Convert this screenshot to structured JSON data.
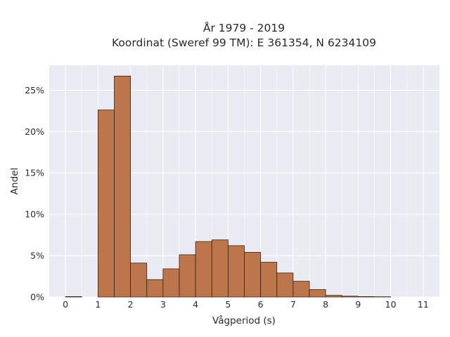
{
  "chart_data": {
    "type": "bar",
    "title": [
      "År 1979 - 2019",
      "Koordinat (Sweref 99 TM): E 361354, N 6234109"
    ],
    "xlabel": "Vågperiod (s)",
    "ylabel": "Andel",
    "xlim": [
      -0.5,
      11.5
    ],
    "ylim": [
      0,
      0.28
    ],
    "x_ticks": [
      0,
      1,
      2,
      3,
      4,
      5,
      6,
      7,
      8,
      9,
      10,
      11
    ],
    "y_ticks": [
      0,
      0.05,
      0.1,
      0.15,
      0.2,
      0.25
    ],
    "y_tick_labels": [
      "0%",
      "5%",
      "10%",
      "15%",
      "20%",
      "25%"
    ],
    "bin_width": 0.5,
    "bins": [
      {
        "start": 0.0,
        "value": 0.0005
      },
      {
        "start": 1.0,
        "value": 0.226
      },
      {
        "start": 1.5,
        "value": 0.267
      },
      {
        "start": 2.0,
        "value": 0.041
      },
      {
        "start": 2.5,
        "value": 0.021
      },
      {
        "start": 3.0,
        "value": 0.034
      },
      {
        "start": 3.5,
        "value": 0.051
      },
      {
        "start": 4.0,
        "value": 0.067
      },
      {
        "start": 4.5,
        "value": 0.069
      },
      {
        "start": 5.0,
        "value": 0.062
      },
      {
        "start": 5.5,
        "value": 0.054
      },
      {
        "start": 6.0,
        "value": 0.042
      },
      {
        "start": 6.5,
        "value": 0.029
      },
      {
        "start": 7.0,
        "value": 0.019
      },
      {
        "start": 7.5,
        "value": 0.009
      },
      {
        "start": 8.0,
        "value": 0.002
      },
      {
        "start": 8.5,
        "value": 0.001
      },
      {
        "start": 9.0,
        "value": 0.0005
      },
      {
        "start": 9.5,
        "value": 0.0003
      }
    ],
    "grid": true,
    "colors": {
      "bar": "#b86a3d",
      "background": "#eaeaf2"
    }
  }
}
